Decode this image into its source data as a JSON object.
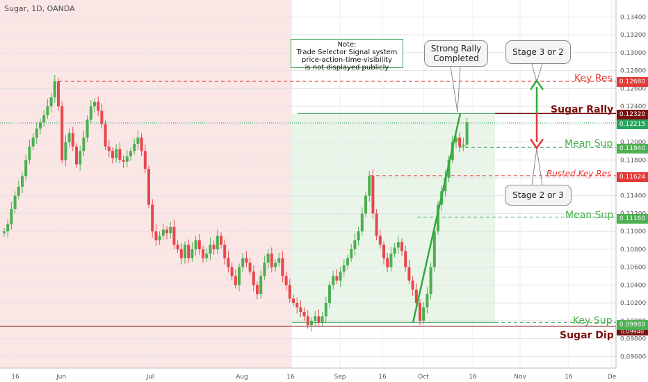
{
  "title": "Sugar, 1D, OANDA",
  "note": {
    "line1": "Note:",
    "line2": "Trade Selector Signal system",
    "line3": "price-action-time-visibility",
    "line4": "is not displayed publicly"
  },
  "callouts": {
    "strong_rally_1": "Strong Rally",
    "strong_rally_2": "Completed",
    "stage_top": "Stage 3 or 2",
    "stage_bottom": "Stage 2 or 3"
  },
  "labels": {
    "key_res": "Key Res",
    "sugar_rally": "Sugar Rally",
    "mean_sup_upper": "Mean Sup",
    "busted_key_res": "Busted Key Res",
    "mean_sup_lower": "Mean Sup",
    "key_sup": "Key Sup",
    "sugar_dip": "Sugar Dip"
  },
  "price_tags": {
    "key_res": "0.12680",
    "sugar_rally": "0.12320",
    "last_price": "0.12215",
    "mean_sup_upper": "0.11940",
    "busted_key_res": "0.11624",
    "mean_sup_lower": "0.11160",
    "key_sup": "0.09980",
    "sugar_dip": "0.09940"
  },
  "colors": {
    "bull": "#4caf50",
    "bear": "#e8474c",
    "red_line": "#e53935",
    "dark_red": "#7b1010",
    "green_line": "#3aa15a",
    "pink_zone": "#fbe6e6",
    "green_zone": "#eaf5e9",
    "last_price": "#26a65b"
  },
  "chart_data": {
    "type": "candlestick",
    "title": "Sugar, 1D, OANDA",
    "x_ticks": [
      "16",
      "Jun",
      "Jul",
      "Aug",
      "16",
      "Sep",
      "16",
      "Oct",
      "16",
      "Nov",
      "16",
      "De"
    ],
    "y_ticks": [
      "0.13400",
      "0.13200",
      "0.13000",
      "0.12800",
      "0.12600",
      "0.12400",
      "0.12200",
      "0.12000",
      "0.11800",
      "0.11600",
      "0.11400",
      "0.11200",
      "0.11000",
      "0.10800",
      "0.10600",
      "0.10400",
      "0.10200",
      "0.10000",
      "0.09800",
      "0.09600"
    ],
    "ylim": [
      0.0947,
      0.1359
    ],
    "levels": [
      {
        "name": "Key Res",
        "value": 0.1268
      },
      {
        "name": "Sugar Rally",
        "value": 0.1232
      },
      {
        "name": "Mean Sup",
        "value": 0.1194
      },
      {
        "name": "Busted Key Res",
        "value": 0.11624
      },
      {
        "name": "Mean Sup",
        "value": 0.1116
      },
      {
        "name": "Key Sup",
        "value": 0.0998
      },
      {
        "name": "Sugar Dip",
        "value": 0.0994
      }
    ],
    "last_price": 0.12215,
    "closes": [
      0.11,
      0.1108,
      0.1125,
      0.114,
      0.115,
      0.1162,
      0.118,
      0.1195,
      0.1205,
      0.1215,
      0.1222,
      0.123,
      0.124,
      0.125,
      0.1268,
      0.124,
      0.118,
      0.12,
      0.121,
      0.1195,
      0.1175,
      0.119,
      0.1205,
      0.1225,
      0.124,
      0.1245,
      0.1235,
      0.122,
      0.1195,
      0.119,
      0.1182,
      0.1192,
      0.118,
      0.1178,
      0.1184,
      0.119,
      0.1198,
      0.1205,
      0.119,
      0.117,
      0.113,
      0.11,
      0.109,
      0.1095,
      0.1102,
      0.1098,
      0.1105,
      0.1085,
      0.108,
      0.107,
      0.1085,
      0.107,
      0.108,
      0.109,
      0.108,
      0.107,
      0.1075,
      0.1085,
      0.108,
      0.1095,
      0.1085,
      0.107,
      0.106,
      0.105,
      0.104,
      0.106,
      0.107,
      0.1065,
      0.1055,
      0.104,
      0.103,
      0.105,
      0.1065,
      0.1075,
      0.106,
      0.1065,
      0.107,
      0.105,
      0.104,
      0.1025,
      0.102,
      0.1015,
      0.101,
      0.1005,
      0.0995,
      0.1,
      0.1005,
      0.0998,
      0.1005,
      0.102,
      0.104,
      0.105,
      0.1045,
      0.1055,
      0.1062,
      0.107,
      0.108,
      0.109,
      0.11,
      0.112,
      0.114,
      0.1162,
      0.112,
      0.1095,
      0.1085,
      0.107,
      0.106,
      0.1075,
      0.1082,
      0.1088,
      0.1078,
      0.106,
      0.1045,
      0.1035,
      0.102,
      0.1,
      0.1015,
      0.103,
      0.106,
      0.11,
      0.113,
      0.1145,
      0.116,
      0.118,
      0.12,
      0.1205,
      0.1195,
      0.1197,
      0.1222
    ]
  }
}
